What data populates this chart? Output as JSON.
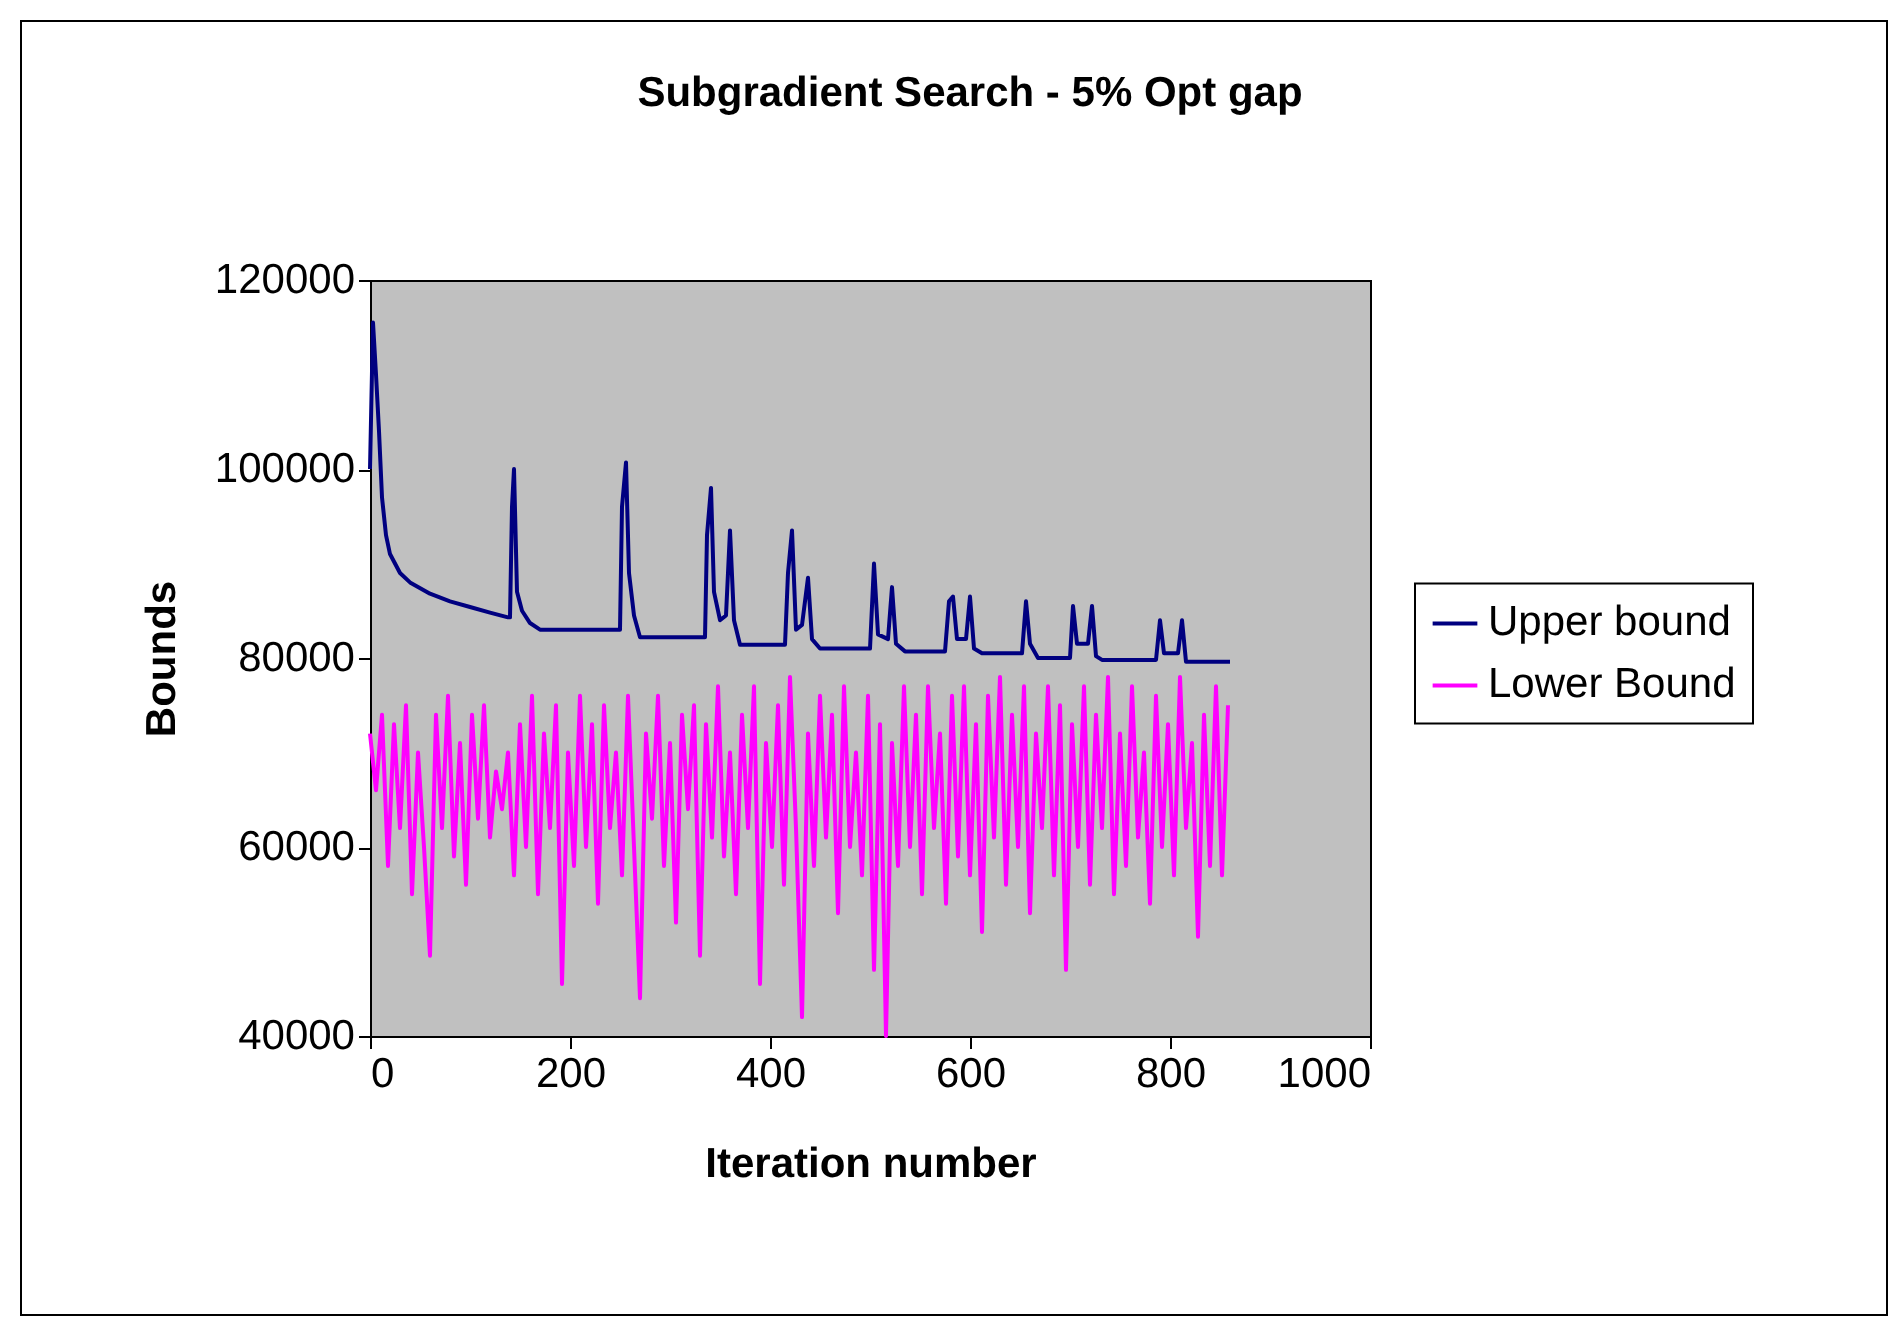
{
  "chart_data": {
    "type": "line",
    "title": "Subgradient Search - 5% Opt gap",
    "xlabel": "Iteration number",
    "ylabel": "Bounds",
    "xlim": [
      0,
      1000
    ],
    "xticks": [
      0,
      200,
      400,
      600,
      800,
      1000
    ],
    "ylim": [
      40000,
      120000
    ],
    "yticks": [
      40000,
      60000,
      80000,
      100000,
      120000
    ],
    "grid": false,
    "legend": "right",
    "marker": "none",
    "line_style": "solid",
    "series": [
      {
        "name": "Upper bound",
        "color": "#000080",
        "x": [
          0,
          3,
          6,
          9,
          12,
          16,
          20,
          30,
          40,
          60,
          80,
          100,
          120,
          138,
          140,
          142,
          144,
          147,
          152,
          160,
          170,
          250,
          252,
          256,
          259,
          264,
          270,
          335,
          337,
          341,
          344,
          350,
          356,
          360,
          364,
          370,
          415,
          418,
          422,
          426,
          432,
          438,
          442,
          450,
          500,
          504,
          508,
          518,
          522,
          526,
          535,
          575,
          579,
          583,
          587,
          596,
          600,
          604,
          612,
          652,
          656,
          660,
          668,
          700,
          703,
          707,
          718,
          722,
          726,
          732,
          786,
          790,
          794,
          808,
          812,
          816,
          860
        ],
        "values": [
          100000,
          115500,
          110000,
          104000,
          97000,
          93000,
          91000,
          89000,
          88000,
          86800,
          86000,
          85400,
          84800,
          84300,
          84300,
          96000,
          100000,
          87000,
          85000,
          83700,
          83000,
          83000,
          96000,
          100700,
          89000,
          84500,
          82200,
          82200,
          93000,
          98000,
          87000,
          84000,
          84500,
          93500,
          84000,
          81400,
          81400,
          89000,
          93500,
          83000,
          83500,
          88500,
          82000,
          81000,
          81000,
          90000,
          82500,
          82000,
          87500,
          81500,
          80700,
          80700,
          86000,
          86500,
          82000,
          82000,
          86500,
          81000,
          80500,
          80500,
          86000,
          81500,
          80000,
          80000,
          85500,
          81500,
          81500,
          85500,
          80200,
          79800,
          79800,
          84000,
          80500,
          80500,
          84000,
          79600,
          79600
        ]
      },
      {
        "name": "Lower Bound",
        "color": "#ff00ff",
        "x": [
          0,
          6,
          12,
          18,
          24,
          30,
          36,
          42,
          48,
          54,
          60,
          66,
          72,
          78,
          84,
          90,
          96,
          102,
          108,
          114,
          120,
          126,
          132,
          138,
          144,
          150,
          156,
          162,
          168,
          174,
          180,
          186,
          192,
          198,
          204,
          210,
          216,
          222,
          228,
          234,
          240,
          246,
          252,
          258,
          264,
          270,
          276,
          282,
          288,
          294,
          300,
          306,
          312,
          318,
          324,
          330,
          336,
          342,
          348,
          354,
          360,
          366,
          372,
          378,
          384,
          390,
          396,
          402,
          408,
          414,
          420,
          426,
          432,
          438,
          444,
          450,
          456,
          462,
          468,
          474,
          480,
          486,
          492,
          498,
          504,
          510,
          516,
          522,
          528,
          534,
          540,
          546,
          552,
          558,
          564,
          570,
          576,
          582,
          588,
          594,
          600,
          606,
          612,
          618,
          624,
          630,
          636,
          642,
          648,
          654,
          660,
          666,
          672,
          678,
          684,
          690,
          696,
          702,
          708,
          714,
          720,
          726,
          732,
          738,
          744,
          750,
          756,
          762,
          768,
          774,
          780,
          786,
          792,
          798,
          804,
          810,
          816,
          822,
          828,
          834,
          840,
          846,
          852,
          858
        ],
        "values": [
          72000,
          66000,
          74000,
          58000,
          73000,
          62000,
          75000,
          55000,
          70000,
          60000,
          48500,
          74000,
          62000,
          76000,
          59000,
          71000,
          56000,
          74000,
          63000,
          75000,
          61000,
          68000,
          64000,
          70000,
          57000,
          73000,
          60000,
          76000,
          55000,
          72000,
          62000,
          75000,
          45500,
          70000,
          58000,
          76000,
          60000,
          73000,
          54000,
          75000,
          62000,
          70000,
          57000,
          76000,
          60000,
          44000,
          72000,
          63000,
          76000,
          58000,
          71000,
          52000,
          74000,
          64000,
          75000,
          48500,
          73000,
          61000,
          77000,
          59000,
          70000,
          55000,
          74000,
          62000,
          77000,
          45500,
          71000,
          60000,
          75000,
          56000,
          78000,
          62000,
          42000,
          72000,
          58000,
          76000,
          61000,
          74000,
          53000,
          77000,
          60000,
          70000,
          57000,
          76000,
          47000,
          73000,
          40000,
          71000,
          58000,
          77000,
          60000,
          74000,
          55000,
          77000,
          62000,
          72000,
          54000,
          76000,
          59000,
          77000,
          57000,
          73000,
          51000,
          76000,
          61000,
          78000,
          56000,
          74000,
          60000,
          77000,
          53000,
          72000,
          62000,
          77000,
          57000,
          75000,
          47000,
          73000,
          60000,
          77000,
          56000,
          74000,
          62000,
          78000,
          55000,
          72000,
          58000,
          77000,
          61000,
          70000,
          54000,
          76000,
          60000,
          73000,
          57000,
          78000,
          62000,
          71000,
          50500,
          74000,
          58000,
          77000,
          57000,
          75000
        ]
      }
    ]
  }
}
